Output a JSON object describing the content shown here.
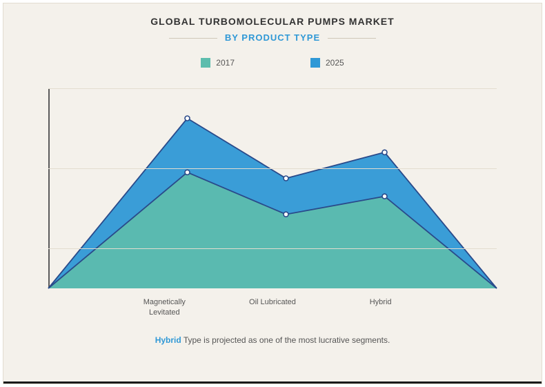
{
  "title": "GLOBAL TURBOMOLECULAR PUMPS MARKET",
  "subtitle": "BY PRODUCT TYPE",
  "legend": {
    "items": [
      {
        "label": "2017",
        "color": "#5dbdad"
      },
      {
        "label": "2025",
        "color": "#2f98d6"
      }
    ]
  },
  "chart": {
    "type": "area",
    "background_color": "#f4f1eb",
    "grid_color": "#e3ddcf",
    "axis_color": "#5a5a5a",
    "label_fontsize": 11,
    "label_color": "#555555",
    "ylim": [
      0,
      100
    ],
    "grid_y": [
      20,
      60,
      100
    ],
    "categories": [
      "Magnetically Levitated",
      "Oil Lubricated",
      "Hybrid"
    ],
    "x_positions_pct": [
      0,
      31,
      53,
      75,
      100
    ],
    "series": [
      {
        "name": "2025",
        "values": [
          0,
          85,
          55,
          68,
          0
        ],
        "fill": "#2f98d6",
        "fill_opacity": 0.95,
        "line": "#2a4a8a",
        "line_width": 1.8,
        "marker_stroke": "#2a4a8a",
        "mark_points": [
          1,
          2,
          3
        ]
      },
      {
        "name": "2017",
        "values": [
          0,
          58,
          37,
          46,
          0
        ],
        "fill": "#5dbdad",
        "fill_opacity": 0.92,
        "line": "#2a4a8a",
        "line_width": 1.8,
        "marker_stroke": "#2a4a8a",
        "mark_points": [
          1,
          2,
          3
        ]
      }
    ]
  },
  "caption": {
    "highlight": "Hybrid",
    "rest": " Type is projected as one of the most lucrative segments."
  },
  "colors": {
    "page_bg": "#f4f1eb",
    "title_color": "#333333",
    "subtitle_color": "#2f98d6",
    "caption_color": "#555555"
  }
}
